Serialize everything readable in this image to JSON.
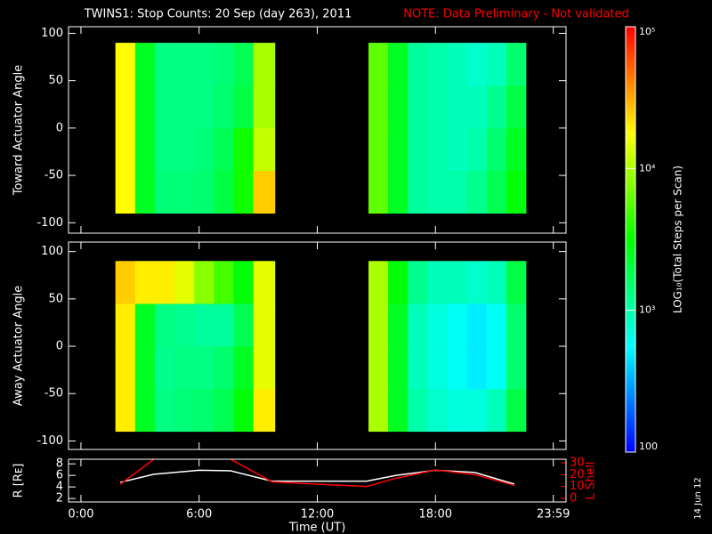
{
  "header": {
    "title": "TWINS1: Stop Counts: 20 Sep (day 263), 2011",
    "note": "NOTE: Data Preliminary - Not validated",
    "date": "14 Jun 12"
  },
  "chart_data": [
    {
      "type": "heatmap",
      "ylabel": "Toward Actuator Angle",
      "xlim": [
        -0.63,
        24.63
      ],
      "ylim": [
        -111,
        107
      ],
      "yticks": [
        -100,
        -50,
        0,
        50,
        100
      ],
      "angle_bins": [
        -90,
        -45,
        0,
        45,
        90
      ],
      "segments": [
        {
          "bins": [
            1.75,
            2.75,
            3.75,
            4.75,
            5.75,
            6.75,
            7.75,
            8.75,
            9.85
          ],
          "values": [
            [
              18000,
              2500,
              1400,
              1400,
              1500,
              2000,
              3500,
              25000
            ],
            [
              18000,
              2500,
              1300,
              1300,
              1400,
              1800,
              3500,
              12000
            ],
            [
              18000,
              2500,
              1300,
              1300,
              1300,
              1500,
              2000,
              10000
            ],
            [
              18000,
              2500,
              1300,
              1300,
              1300,
              1400,
              1800,
              10000
            ]
          ]
        },
        {
          "bins": [
            14.6,
            15.6,
            16.6,
            17.6,
            18.6,
            19.6,
            20.6,
            21.6,
            22.6
          ],
          "values": [
            [
              6000,
              2500,
              1100,
              1000,
              1000,
              1200,
              1800,
              3000
            ],
            [
              6000,
              2500,
              1100,
              1000,
              900,
              1000,
              1500,
              2500
            ],
            [
              6000,
              2500,
              1100,
              1000,
              900,
              900,
              1200,
              2000
            ],
            [
              6000,
              2500,
              1100,
              1000,
              900,
              800,
              900,
              1500
            ]
          ]
        }
      ]
    },
    {
      "type": "heatmap",
      "ylabel": "Away Actuator Angle",
      "xlim": [
        -0.63,
        24.63
      ],
      "ylim": [
        -109,
        110
      ],
      "yticks": [
        -100,
        -50,
        0,
        50,
        100
      ],
      "angle_bins": [
        -90,
        -45,
        0,
        45,
        90
      ],
      "segments": [
        {
          "bins": [
            1.75,
            2.75,
            3.75,
            4.75,
            5.75,
            6.75,
            7.75,
            8.75,
            9.85
          ],
          "values": [
            [
              20000,
              2500,
              1300,
              1400,
              1500,
              1800,
              3000,
              20000
            ],
            [
              20000,
              2500,
              1200,
              1300,
              1300,
              1500,
              2500,
              15000
            ],
            [
              20000,
              2500,
              1300,
              1200,
              1100,
              1100,
              1800,
              15000
            ],
            [
              25000,
              20000,
              20000,
              15000,
              8000,
              5000,
              3000,
              15000
            ]
          ]
        },
        {
          "bins": [
            14.6,
            15.6,
            16.6,
            17.6,
            18.6,
            19.6,
            20.6,
            21.6,
            22.6
          ],
          "values": [
            [
              10000,
              2500,
              1000,
              800,
              700,
              700,
              900,
              2000
            ],
            [
              10000,
              2500,
              900,
              700,
              600,
              500,
              600,
              1500
            ],
            [
              10000,
              2500,
              900,
              700,
              600,
              500,
              600,
              1500
            ],
            [
              10000,
              3000,
              1200,
              900,
              900,
              800,
              900,
              2000
            ]
          ]
        }
      ]
    },
    {
      "type": "line",
      "xlabel": "Time (UT)",
      "ylabel": "R [Rᴇ]",
      "y2label": "L Shell",
      "xlim": [
        -0.63,
        24.63
      ],
      "xticks": [
        {
          "value": 0,
          "label": "0:00"
        },
        {
          "value": 6,
          "label": "6:00"
        },
        {
          "value": 12,
          "label": "12:00"
        },
        {
          "value": 18,
          "label": "18:00"
        },
        {
          "value": 23.983,
          "label": "23:59"
        }
      ],
      "ylim": [
        1.4,
        8.8
      ],
      "yticks": [
        2,
        4,
        6,
        8
      ],
      "y2lim": [
        -3,
        33
      ],
      "y2ticks": [
        0,
        10,
        20,
        30
      ],
      "x": [
        2,
        3.7,
        6,
        7.6,
        9.7,
        12,
        14.5,
        16,
        18,
        20,
        22
      ],
      "series": [
        {
          "name": "R",
          "color": "#ffffff",
          "values": [
            4.8,
            6.2,
            6.9,
            6.8,
            5.0,
            5.0,
            5.0,
            6.0,
            6.9,
            6.5,
            4.5
          ]
        },
        {
          "name": "L Shell",
          "color": "#ff0000",
          "axis": "y2",
          "values": [
            12,
            33,
            null,
            33,
            14,
            12,
            10,
            17,
            24,
            20,
            11
          ]
        }
      ]
    },
    {
      "type": "colorbar",
      "label": "LOG₁₀(Total Steps per Scan)",
      "ylim": [
        100,
        100000
      ],
      "log": true,
      "yticks": [
        {
          "value": 100,
          "label": "100"
        },
        {
          "value": 1000,
          "label": "10³"
        },
        {
          "value": 10000,
          "label": "10⁴"
        },
        {
          "value": 100000,
          "label": "10⁵"
        }
      ]
    }
  ]
}
